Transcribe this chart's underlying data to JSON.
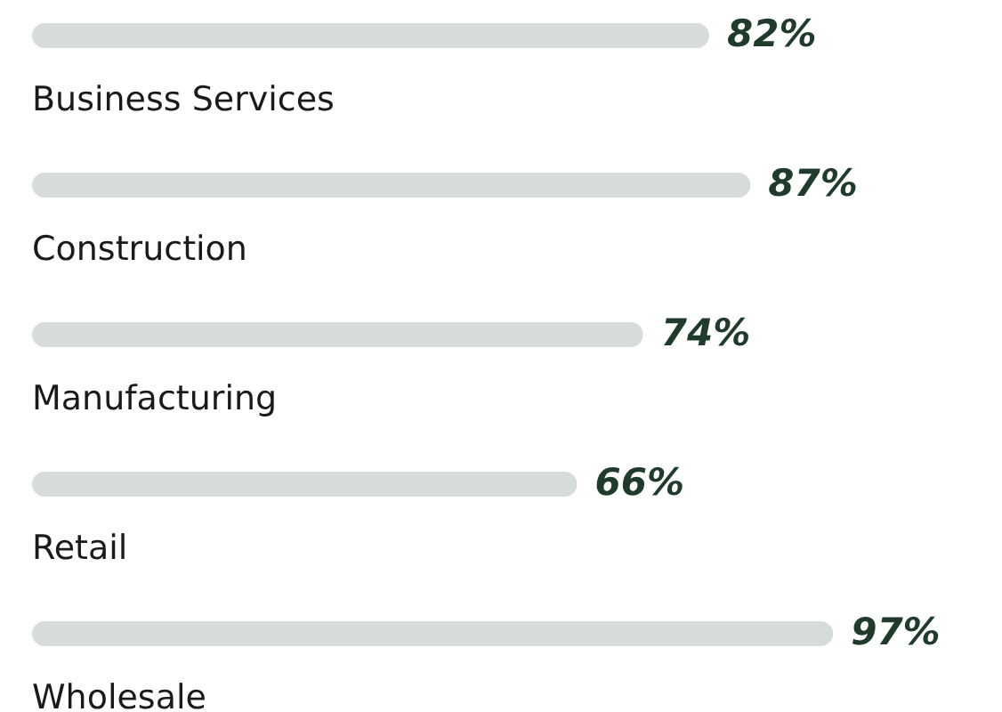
{
  "chart_data": {
    "type": "bar",
    "orientation": "horizontal",
    "categories": [
      "Business Services",
      "Construction",
      "Manufacturing",
      "Retail",
      "Wholesale"
    ],
    "values": [
      82,
      87,
      74,
      66,
      97
    ],
    "value_labels": [
      "82%",
      "87%",
      "74%",
      "66%",
      "97%"
    ],
    "color": "#d6dcd7"
  }
}
